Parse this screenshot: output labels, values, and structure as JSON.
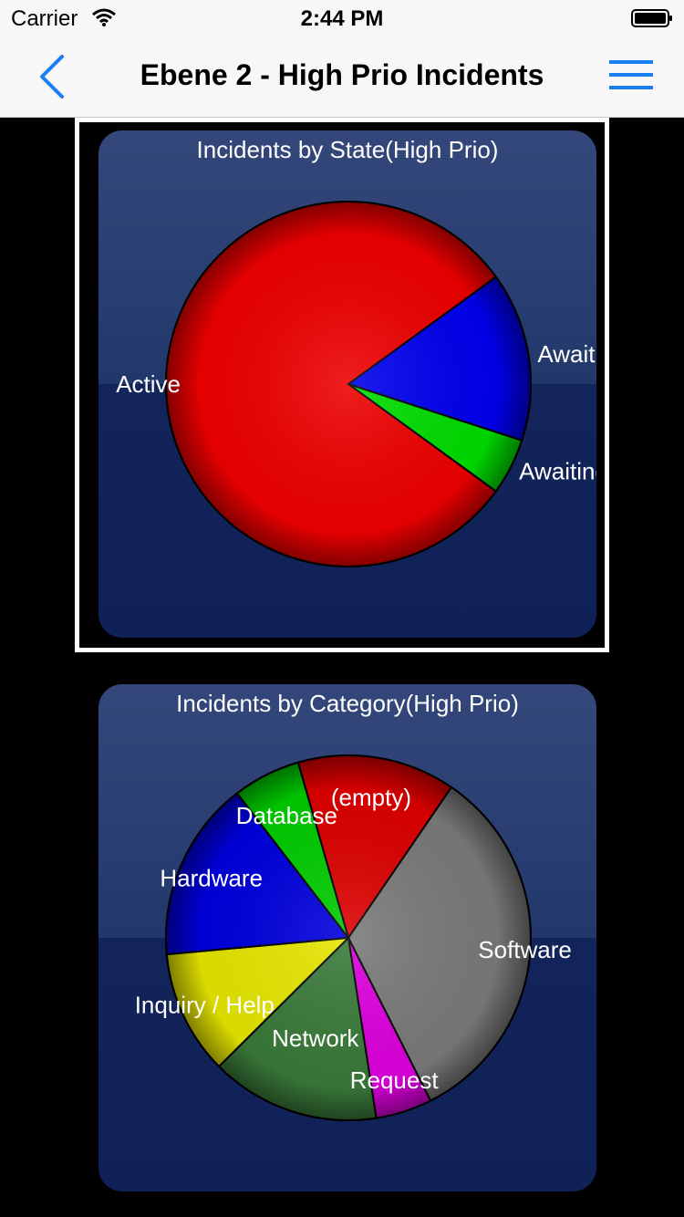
{
  "status_bar": {
    "carrier": "Carrier",
    "time": "2:44 PM"
  },
  "nav": {
    "title": "Ebene 2 - High Prio Incidents"
  },
  "colors": {
    "accent": "#1a7ef0"
  },
  "chart_data": [
    {
      "type": "pie",
      "title": "Incidents by State(High Prio)",
      "slices": [
        {
          "label": "Awaiting Us",
          "value": 15,
          "color": "#0000ee"
        },
        {
          "label": "Awaiting Pr",
          "value": 5,
          "color": "#00dd00"
        },
        {
          "label": "Active",
          "value": 80,
          "color": "#ee0000"
        }
      ]
    },
    {
      "type": "pie",
      "title": "Incidents by Category(High Prio)",
      "slices": [
        {
          "label": "(empty)",
          "value": 14,
          "color": "#dd0000"
        },
        {
          "label": "Software",
          "value": 33,
          "color": "#7a7a7a"
        },
        {
          "label": "Request",
          "value": 5,
          "color": "#dd00dd"
        },
        {
          "label": "Network",
          "value": 15,
          "color": "#3a7a3a"
        },
        {
          "label": "Inquiry / Help",
          "value": 11,
          "color": "#e6e600"
        },
        {
          "label": "Hardware",
          "value": 16,
          "color": "#0000dd"
        },
        {
          "label": "Database",
          "value": 6,
          "color": "#00cc00"
        }
      ]
    }
  ]
}
